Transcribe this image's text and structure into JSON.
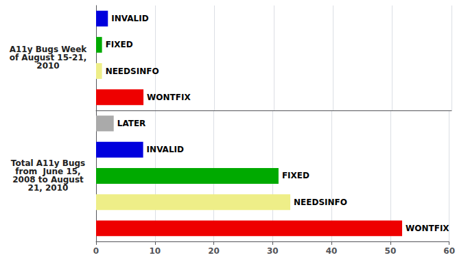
{
  "chart_data": [
    {
      "type": "bar",
      "orientation": "horizontal",
      "ylabel": "A11y Bugs Week\nof August 15-21,\n2010",
      "categories": [
        "INVALID",
        "FIXED",
        "NEEDSINFO",
        "WONTFIX"
      ],
      "values": [
        2,
        1,
        1,
        8
      ],
      "colors": [
        "#0000dd",
        "#00aa00",
        "#eeee88",
        "#ee0000"
      ],
      "xlim": [
        0,
        60
      ],
      "xticks": [
        0,
        10,
        20,
        30,
        40,
        50,
        60
      ],
      "grid": true,
      "tick_labels": false
    },
    {
      "type": "bar",
      "orientation": "horizontal",
      "ylabel": "Total A11y Bugs\nfrom  June 15,\n2008 to August\n21, 2010",
      "categories": [
        "LATER",
        "INVALID",
        "FIXED",
        "NEEDSINFO",
        "WONTFIX"
      ],
      "values": [
        3,
        8,
        31,
        33,
        52
      ],
      "colors": [
        "#aaaaaa",
        "#0000dd",
        "#00aa00",
        "#eeee88",
        "#ee0000"
      ],
      "xlim": [
        0,
        60
      ],
      "xticks": [
        0,
        10,
        20,
        30,
        40,
        50,
        60
      ],
      "grid": true,
      "tick_labels": "x"
    }
  ]
}
